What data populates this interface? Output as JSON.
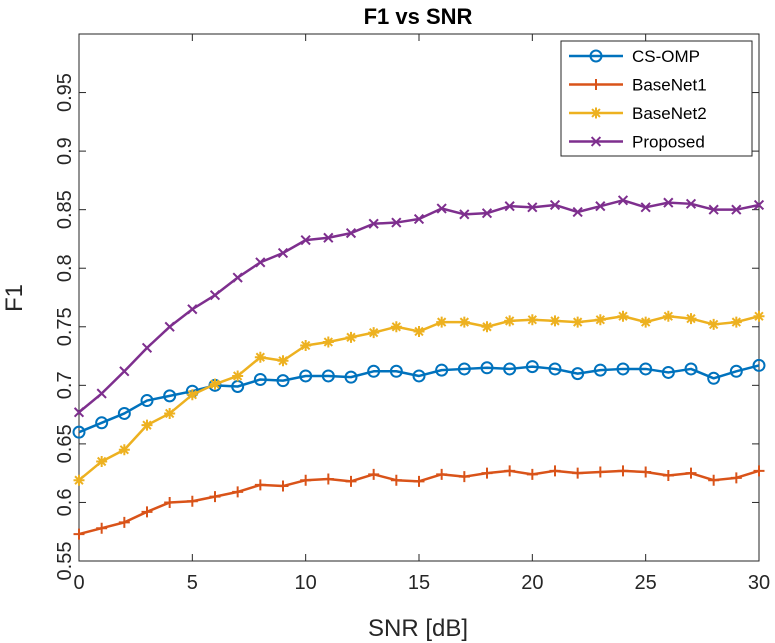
{
  "chart_data": {
    "type": "line",
    "title": "F1 vs SNR",
    "xlabel": "SNR [dB]",
    "ylabel": "F1",
    "xlim": [
      0,
      30
    ],
    "ylim": [
      0.55,
      1.0
    ],
    "xticks": [
      "0",
      "5",
      "10",
      "15",
      "20",
      "25",
      "30"
    ],
    "yticks": [
      "0.55",
      "0.6",
      "0.65",
      "0.7",
      "0.75",
      "0.8",
      "0.85",
      "0.9",
      "0.95"
    ],
    "grid": false,
    "box": true,
    "legend_position": "top-right",
    "x": [
      0,
      1,
      2,
      3,
      4,
      5,
      6,
      7,
      8,
      9,
      10,
      11,
      12,
      13,
      14,
      15,
      16,
      17,
      18,
      19,
      20,
      21,
      22,
      23,
      24,
      25,
      26,
      27,
      28,
      29,
      30
    ],
    "series": [
      {
        "name": "CS-OMP",
        "color": "#0072BD",
        "marker": "circle",
        "values": [
          0.66,
          0.668,
          0.676,
          0.687,
          0.691,
          0.695,
          0.7,
          0.699,
          0.705,
          0.704,
          0.708,
          0.708,
          0.707,
          0.712,
          0.712,
          0.708,
          0.713,
          0.714,
          0.715,
          0.714,
          0.716,
          0.714,
          0.71,
          0.713,
          0.714,
          0.714,
          0.711,
          0.714,
          0.706,
          0.712,
          0.717
        ]
      },
      {
        "name": "BaseNet1",
        "color": "#D95319",
        "marker": "plus",
        "values": [
          0.573,
          0.578,
          0.583,
          0.592,
          0.6,
          0.601,
          0.605,
          0.609,
          0.615,
          0.614,
          0.619,
          0.62,
          0.618,
          0.624,
          0.619,
          0.618,
          0.624,
          0.622,
          0.625,
          0.627,
          0.624,
          0.627,
          0.625,
          0.626,
          0.627,
          0.626,
          0.623,
          0.625,
          0.619,
          0.621,
          0.627
        ]
      },
      {
        "name": "BaseNet2",
        "color": "#EDB120",
        "marker": "asterisk",
        "values": [
          0.619,
          0.635,
          0.645,
          0.666,
          0.676,
          0.692,
          0.701,
          0.708,
          0.724,
          0.721,
          0.734,
          0.737,
          0.741,
          0.745,
          0.75,
          0.746,
          0.754,
          0.754,
          0.75,
          0.755,
          0.756,
          0.755,
          0.754,
          0.756,
          0.759,
          0.754,
          0.759,
          0.757,
          0.752,
          0.754,
          0.759
        ]
      },
      {
        "name": "Proposed",
        "color": "#7E2F8E",
        "marker": "x",
        "values": [
          0.677,
          0.693,
          0.712,
          0.732,
          0.75,
          0.765,
          0.777,
          0.792,
          0.805,
          0.813,
          0.824,
          0.826,
          0.83,
          0.838,
          0.839,
          0.842,
          0.851,
          0.846,
          0.847,
          0.853,
          0.852,
          0.854,
          0.848,
          0.853,
          0.858,
          0.852,
          0.856,
          0.855,
          0.85,
          0.85,
          0.854
        ]
      }
    ]
  }
}
